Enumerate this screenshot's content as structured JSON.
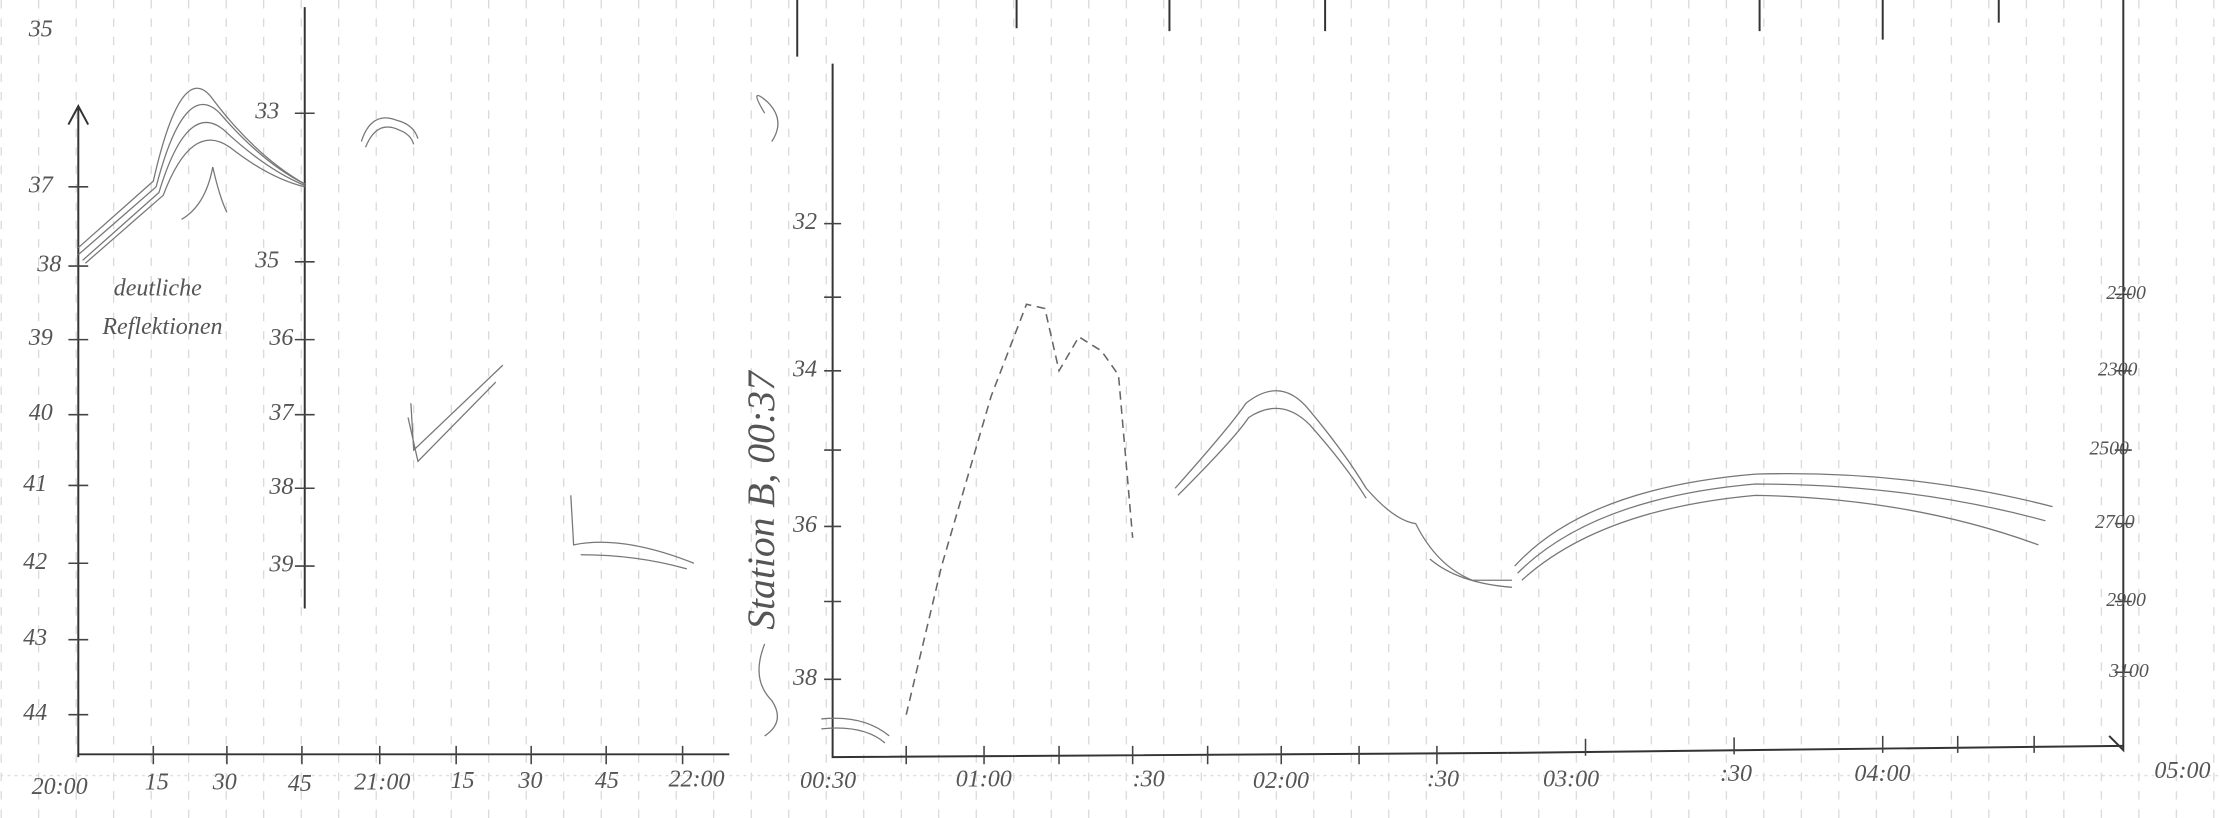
{
  "left_panel": {
    "y_labels": [
      "35",
      "37",
      "38",
      "39",
      "40",
      "41",
      "42",
      "43",
      "44"
    ],
    "annotation": [
      "deutliche",
      "Reflektionen"
    ],
    "inner_y_labels": [
      "33",
      "35",
      "36",
      "37",
      "38",
      "39"
    ],
    "x_labels": [
      "20:00",
      "15",
      "30",
      "45",
      "21:00",
      "15",
      "30",
      "45",
      "22:00"
    ]
  },
  "middle_panel": {
    "vertical_title": "Station B, 00:37",
    "y_labels": [
      "32",
      "34",
      "36",
      "38"
    ],
    "x_labels": [
      "00:30",
      "01:00",
      ":30",
      "02:00",
      ":30",
      "03:00",
      ":30",
      "04:00",
      "05:00"
    ]
  },
  "right_panel": {
    "y_labels": [
      "2200",
      "2300",
      "2500",
      "2700",
      "2900",
      "3100"
    ]
  }
}
